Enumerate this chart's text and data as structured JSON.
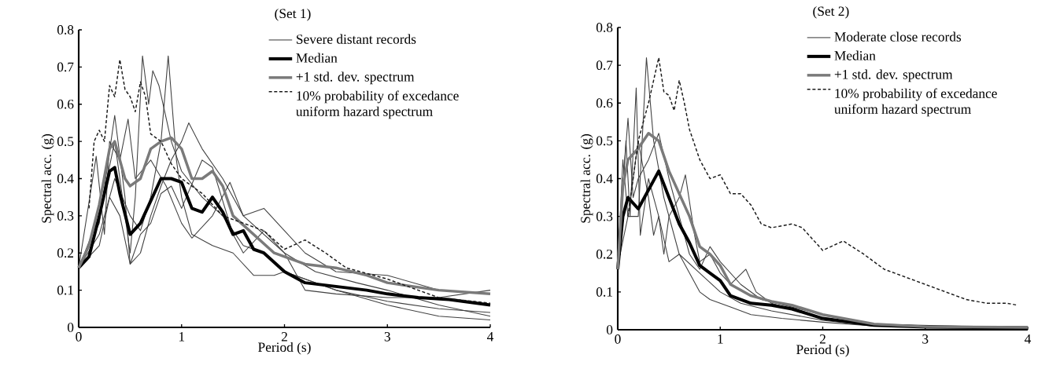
{
  "chart_data": [
    {
      "type": "line",
      "title": "(Set 1)",
      "xlabel": "Period (s)",
      "ylabel": "Spectral acc. (g)",
      "xlim": [
        0,
        4
      ],
      "ylim": [
        0,
        0.8
      ],
      "xticks": [
        0,
        1,
        2,
        3,
        4
      ],
      "yticks": [
        0,
        0.1,
        0.2,
        0.3,
        0.4,
        0.5,
        0.6,
        0.7,
        0.8
      ],
      "legend": "top right",
      "series": [
        {
          "name": "Severe distant records",
          "color": "#404040",
          "x": [
            0,
            0.2,
            0.35,
            0.5,
            0.6,
            0.7,
            0.8,
            0.87,
            0.95,
            1.0,
            1.1,
            1.3,
            1.5,
            1.7,
            1.9,
            2.0,
            2.5,
            3.0,
            3.5,
            4.0
          ],
          "values": [
            0.16,
            0.25,
            0.4,
            0.3,
            0.26,
            0.35,
            0.5,
            0.73,
            0.45,
            0.35,
            0.25,
            0.22,
            0.2,
            0.14,
            0.14,
            0.15,
            0.1,
            0.07,
            0.05,
            0.04
          ]
        },
        {
          "color": "#404040",
          "x": [
            0,
            0.2,
            0.35,
            0.45,
            0.5,
            0.55,
            0.62,
            0.68,
            0.72,
            0.78,
            0.9,
            1.0,
            1.2,
            1.4,
            1.6,
            1.8,
            2.0,
            2.5,
            3.0,
            3.5,
            4.0
          ],
          "values": [
            0.16,
            0.3,
            0.5,
            0.3,
            0.2,
            0.35,
            0.73,
            0.6,
            0.69,
            0.65,
            0.5,
            0.42,
            0.35,
            0.3,
            0.22,
            0.2,
            0.15,
            0.1,
            0.06,
            0.03,
            0.02
          ]
        },
        {
          "color": "#404040",
          "x": [
            0,
            0.2,
            0.35,
            0.45,
            0.5,
            0.6,
            0.7,
            0.8,
            0.9,
            1.0,
            1.07,
            1.2,
            1.4,
            1.6,
            1.8,
            2.0,
            2.2,
            2.5,
            3.0,
            3.5,
            4.0
          ],
          "values": [
            0.16,
            0.28,
            0.57,
            0.35,
            0.17,
            0.2,
            0.3,
            0.38,
            0.45,
            0.5,
            0.55,
            0.48,
            0.4,
            0.3,
            0.32,
            0.26,
            0.2,
            0.15,
            0.14,
            0.1,
            0.09
          ]
        },
        {
          "color": "#404040",
          "x": [
            0,
            0.17,
            0.25,
            0.3,
            0.4,
            0.48,
            0.55,
            0.7,
            0.85,
            1.0,
            1.1,
            1.3,
            1.47,
            1.6,
            1.8,
            2.0,
            2.3,
            2.7,
            3.0,
            3.5,
            4.0
          ],
          "values": [
            0.16,
            0.46,
            0.25,
            0.5,
            0.45,
            0.56,
            0.4,
            0.45,
            0.38,
            0.28,
            0.24,
            0.3,
            0.39,
            0.3,
            0.25,
            0.2,
            0.15,
            0.12,
            0.1,
            0.06,
            0.03
          ]
        },
        {
          "color": "#404040",
          "x": [
            0,
            0.2,
            0.3,
            0.4,
            0.5,
            0.6,
            0.7,
            0.8,
            0.9,
            1.0,
            1.2,
            1.3,
            1.5,
            1.6,
            1.8,
            2.0,
            2.2,
            2.5,
            3.0,
            3.5,
            4.0
          ],
          "values": [
            0.16,
            0.22,
            0.35,
            0.3,
            0.17,
            0.25,
            0.28,
            0.36,
            0.38,
            0.32,
            0.45,
            0.43,
            0.25,
            0.2,
            0.26,
            0.2,
            0.1,
            0.09,
            0.08,
            0.08,
            0.1
          ]
        },
        {
          "name": "Median",
          "color": "#000000",
          "x": [
            0,
            0.1,
            0.2,
            0.3,
            0.35,
            0.4,
            0.5,
            0.6,
            0.7,
            0.8,
            0.9,
            1.0,
            1.1,
            1.2,
            1.3,
            1.4,
            1.5,
            1.6,
            1.7,
            1.8,
            2.0,
            2.2,
            2.5,
            2.8,
            3.0,
            3.3,
            3.6,
            4.0
          ],
          "values": [
            0.16,
            0.19,
            0.3,
            0.42,
            0.43,
            0.36,
            0.25,
            0.28,
            0.34,
            0.4,
            0.4,
            0.39,
            0.32,
            0.31,
            0.35,
            0.31,
            0.25,
            0.26,
            0.21,
            0.2,
            0.15,
            0.12,
            0.11,
            0.1,
            0.09,
            0.08,
            0.075,
            0.06
          ]
        },
        {
          "name": "+1 std. dev. spectrum",
          "color": "#7a7a7a",
          "x": [
            0,
            0.1,
            0.2,
            0.3,
            0.35,
            0.45,
            0.5,
            0.6,
            0.7,
            0.8,
            0.9,
            1.0,
            1.1,
            1.2,
            1.3,
            1.4,
            1.5,
            1.7,
            1.9,
            2.2,
            2.5,
            2.8,
            3.0,
            3.5,
            4.0
          ],
          "values": [
            0.16,
            0.22,
            0.33,
            0.48,
            0.5,
            0.4,
            0.38,
            0.4,
            0.48,
            0.5,
            0.51,
            0.48,
            0.4,
            0.4,
            0.42,
            0.38,
            0.3,
            0.25,
            0.2,
            0.17,
            0.16,
            0.14,
            0.12,
            0.1,
            0.09
          ]
        },
        {
          "name": "10% probability of excedance uniform hazard spectrum",
          "color": "#1a1a1a",
          "line_style": "dashed",
          "x": [
            0.1,
            0.15,
            0.2,
            0.25,
            0.3,
            0.35,
            0.4,
            0.45,
            0.5,
            0.55,
            0.6,
            0.65,
            0.7,
            0.8,
            0.9,
            1.0,
            1.2,
            1.4,
            1.6,
            1.8,
            2.0,
            2.2,
            2.4,
            2.6,
            3.0,
            3.5,
            4.0
          ],
          "values": [
            0.32,
            0.5,
            0.53,
            0.5,
            0.65,
            0.62,
            0.72,
            0.64,
            0.62,
            0.58,
            0.66,
            0.62,
            0.52,
            0.5,
            0.44,
            0.4,
            0.36,
            0.3,
            0.28,
            0.26,
            0.21,
            0.235,
            0.2,
            0.16,
            0.13,
            0.08,
            0.065
          ]
        }
      ]
    },
    {
      "type": "line",
      "title": "(Set 2)",
      "xlabel": "Period (s)",
      "ylabel": "Spectral acc. (g)",
      "xlim": [
        0,
        4
      ],
      "ylim": [
        0,
        0.8
      ],
      "xticks": [
        0,
        1,
        2,
        3,
        4
      ],
      "yticks": [
        0,
        0.1,
        0.2,
        0.3,
        0.4,
        0.5,
        0.6,
        0.7,
        0.8
      ],
      "legend": "top right",
      "series": [
        {
          "name": "Moderate close records",
          "color": "#404040",
          "x": [
            0,
            0.05,
            0.1,
            0.2,
            0.28,
            0.35,
            0.45,
            0.5,
            0.6,
            0.8,
            1.0,
            1.2,
            1.5,
            2.0,
            2.5,
            4.0
          ],
          "values": [
            0.16,
            0.45,
            0.3,
            0.3,
            0.72,
            0.5,
            0.35,
            0.3,
            0.2,
            0.15,
            0.1,
            0.07,
            0.05,
            0.025,
            0.01,
            0.005
          ]
        },
        {
          "color": "#404040",
          "x": [
            0,
            0.08,
            0.12,
            0.18,
            0.22,
            0.3,
            0.4,
            0.45,
            0.5,
            0.6,
            0.66,
            0.75,
            0.8,
            0.9,
            1.0,
            1.1,
            1.25,
            1.35,
            1.5,
            2.0,
            2.5,
            4.0
          ],
          "values": [
            0.16,
            0.5,
            0.3,
            0.64,
            0.25,
            0.4,
            0.3,
            0.2,
            0.3,
            0.35,
            0.41,
            0.25,
            0.18,
            0.2,
            0.15,
            0.12,
            0.16,
            0.1,
            0.07,
            0.03,
            0.01,
            0.005
          ]
        },
        {
          "color": "#404040",
          "x": [
            0,
            0.1,
            0.15,
            0.2,
            0.3,
            0.4,
            0.5,
            0.6,
            0.7,
            0.8,
            0.9,
            1.0,
            1.2,
            1.4,
            1.7,
            2.0,
            2.5,
            4.0
          ],
          "values": [
            0.2,
            0.56,
            0.35,
            0.4,
            0.45,
            0.52,
            0.4,
            0.3,
            0.2,
            0.16,
            0.22,
            0.18,
            0.12,
            0.08,
            0.06,
            0.04,
            0.015,
            0.005
          ]
        },
        {
          "color": "#404040",
          "x": [
            0,
            0.1,
            0.2,
            0.3,
            0.35,
            0.4,
            0.5,
            0.6,
            0.7,
            0.8,
            0.9,
            1.0,
            1.1,
            1.3,
            1.6,
            2.0,
            2.5,
            4.0
          ],
          "values": [
            0.17,
            0.3,
            0.5,
            0.35,
            0.25,
            0.3,
            0.18,
            0.2,
            0.15,
            0.1,
            0.08,
            0.07,
            0.06,
            0.04,
            0.03,
            0.02,
            0.01,
            0.005
          ]
        },
        {
          "name": "Median",
          "color": "#000000",
          "x": [
            0,
            0.05,
            0.1,
            0.2,
            0.3,
            0.4,
            0.5,
            0.6,
            0.7,
            0.8,
            0.9,
            1.0,
            1.1,
            1.3,
            1.5,
            1.7,
            2.0,
            2.5,
            3.0,
            4.0
          ],
          "values": [
            0.16,
            0.3,
            0.35,
            0.32,
            0.37,
            0.42,
            0.35,
            0.28,
            0.23,
            0.17,
            0.15,
            0.13,
            0.09,
            0.07,
            0.065,
            0.055,
            0.03,
            0.012,
            0.007,
            0.005
          ]
        },
        {
          "name": "+1 std. dev. spectrum",
          "color": "#7a7a7a",
          "x": [
            0,
            0.05,
            0.1,
            0.2,
            0.3,
            0.4,
            0.5,
            0.6,
            0.7,
            0.8,
            0.9,
            1.0,
            1.1,
            1.3,
            1.5,
            1.7,
            2.0,
            2.5,
            3.0,
            4.0
          ],
          "values": [
            0.16,
            0.38,
            0.45,
            0.48,
            0.52,
            0.5,
            0.42,
            0.36,
            0.3,
            0.22,
            0.2,
            0.17,
            0.12,
            0.09,
            0.075,
            0.065,
            0.04,
            0.015,
            0.008,
            0.006
          ]
        },
        {
          "name": "10% probability of excedance uniform hazard spectrum",
          "color": "#1a1a1a",
          "line_style": "dashed",
          "x": [
            0.1,
            0.2,
            0.3,
            0.4,
            0.45,
            0.5,
            0.55,
            0.6,
            0.65,
            0.7,
            0.8,
            0.9,
            1.0,
            1.1,
            1.2,
            1.3,
            1.4,
            1.5,
            1.7,
            1.8,
            2.0,
            2.2,
            2.4,
            2.6,
            3.0,
            3.4,
            3.6,
            3.8,
            3.9
          ],
          "values": [
            0.3,
            0.5,
            0.6,
            0.72,
            0.63,
            0.62,
            0.58,
            0.66,
            0.6,
            0.53,
            0.45,
            0.4,
            0.41,
            0.36,
            0.36,
            0.33,
            0.28,
            0.27,
            0.28,
            0.27,
            0.21,
            0.235,
            0.2,
            0.16,
            0.12,
            0.08,
            0.07,
            0.07,
            0.065
          ]
        }
      ]
    }
  ]
}
